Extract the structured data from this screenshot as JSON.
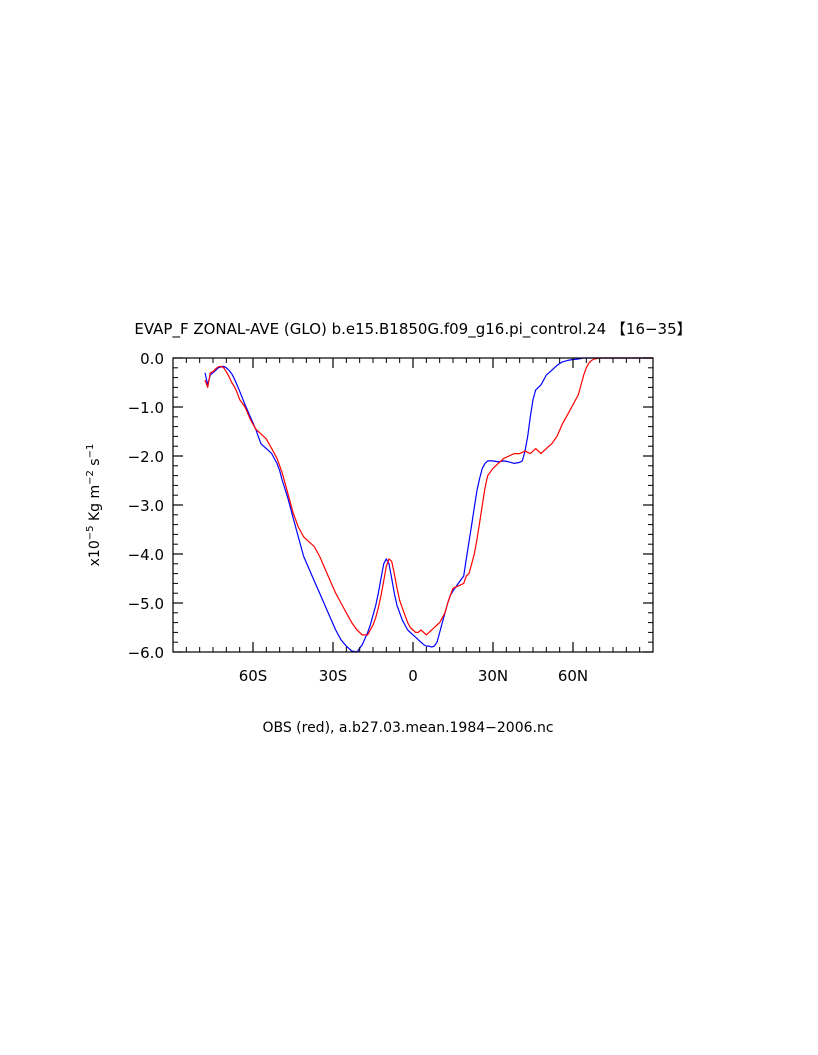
{
  "chart_data": {
    "type": "line",
    "title": "EVAP_F ZONAL-AVE (GLO) b.e15.B1850G.f09_g16.pi_control.24 【16−35】",
    "xlabel": "OBS (red), a.b27.03.mean.1984−2006.nc",
    "ylabel": {
      "prefix": "x10",
      "exp1": "−5",
      "mid1": " Kg m",
      "exp2": "−2",
      "mid2": " s",
      "exp3": "−1"
    },
    "xlim": [
      -90,
      90
    ],
    "ylim": [
      -6.0,
      0.0
    ],
    "x_ticks": [
      {
        "value": -60,
        "label": "60S"
      },
      {
        "value": -30,
        "label": "30S"
      },
      {
        "value": 0,
        "label": "0"
      },
      {
        "value": 30,
        "label": "30N"
      },
      {
        "value": 60,
        "label": "60N"
      }
    ],
    "y_ticks": [
      {
        "value": 0.0,
        "label": "0.0"
      },
      {
        "value": -1.0,
        "label": "−1.0"
      },
      {
        "value": -2.0,
        "label": "−2.0"
      },
      {
        "value": -3.0,
        "label": "−3.0"
      },
      {
        "value": -4.0,
        "label": "−4.0"
      },
      {
        "value": -5.0,
        "label": "−5.0"
      },
      {
        "value": -6.0,
        "label": "−6.0"
      }
    ],
    "series": [
      {
        "color": "#0000ff",
        "x": [
          -78,
          -77,
          -76,
          -75,
          -74,
          -73,
          -72,
          -71,
          -70,
          -69,
          -68,
          -67,
          -66,
          -65,
          -63,
          -61,
          -59,
          -58,
          -57,
          -55,
          -53,
          -51,
          -50,
          -49,
          -47,
          -45,
          -43,
          -41,
          -39,
          -37,
          -35,
          -33,
          -31,
          -29,
          -27,
          -25,
          -23,
          -21,
          -19,
          -17,
          -16,
          -15,
          -14,
          -13,
          -12,
          -11,
          -10,
          -9,
          -8,
          -7,
          -6,
          -5,
          -4,
          -3,
          -2,
          -1,
          0,
          1,
          2,
          3,
          4,
          5,
          6,
          7,
          8,
          9,
          10,
          11,
          12,
          13,
          14,
          15,
          17,
          19,
          20,
          21,
          22,
          23,
          24,
          25,
          26,
          27,
          28,
          30,
          32,
          34,
          36,
          38,
          40,
          41,
          42,
          43,
          44,
          45,
          46,
          48,
          50,
          52,
          54,
          56,
          58,
          60,
          62,
          64,
          65,
          66,
          67,
          68,
          69,
          70,
          71,
          72,
          73,
          74,
          75,
          76,
          78,
          80,
          82,
          84,
          86,
          88,
          90
        ],
        "y": [
          -0.3,
          -0.55,
          -0.35,
          -0.3,
          -0.25,
          -0.2,
          -0.18,
          -0.17,
          -0.2,
          -0.25,
          -0.32,
          -0.42,
          -0.55,
          -0.68,
          -0.95,
          -1.2,
          -1.45,
          -1.6,
          -1.75,
          -1.85,
          -1.95,
          -2.15,
          -2.3,
          -2.5,
          -2.85,
          -3.25,
          -3.65,
          -4.05,
          -4.3,
          -4.55,
          -4.8,
          -5.05,
          -5.3,
          -5.55,
          -5.75,
          -5.88,
          -5.98,
          -6.0,
          -5.85,
          -5.6,
          -5.45,
          -5.25,
          -5.05,
          -4.8,
          -4.5,
          -4.2,
          -4.1,
          -4.2,
          -4.5,
          -4.8,
          -5.05,
          -5.2,
          -5.35,
          -5.45,
          -5.55,
          -5.6,
          -5.65,
          -5.7,
          -5.75,
          -5.8,
          -5.85,
          -5.88,
          -5.88,
          -5.9,
          -5.88,
          -5.8,
          -5.6,
          -5.4,
          -5.2,
          -5.0,
          -4.85,
          -4.75,
          -4.6,
          -4.45,
          -4.1,
          -3.75,
          -3.4,
          -3.05,
          -2.7,
          -2.45,
          -2.25,
          -2.15,
          -2.1,
          -2.1,
          -2.12,
          -2.1,
          -2.12,
          -2.15,
          -2.13,
          -2.1,
          -1.9,
          -1.6,
          -1.2,
          -0.85,
          -0.65,
          -0.55,
          -0.35,
          -0.25,
          -0.15,
          -0.08,
          -0.05,
          -0.03,
          -0.02,
          -0.0,
          0.0,
          0.0,
          0.0,
          0.0,
          0.0,
          0.0,
          0.0,
          0.0,
          0.0,
          0.0,
          0.0,
          0.0,
          0.0,
          0.0,
          0.0,
          0.0,
          0.0,
          0.0,
          0.0
        ]
      },
      {
        "color": "#ff0000",
        "x": [
          -78,
          -77,
          -76,
          -75,
          -74,
          -73,
          -72,
          -71,
          -70,
          -69,
          -68,
          -67,
          -66,
          -65,
          -63,
          -61,
          -59,
          -57,
          -55,
          -53,
          -51,
          -49,
          -47,
          -45,
          -43,
          -41,
          -39,
          -37,
          -35,
          -33,
          -31,
          -29,
          -27,
          -25,
          -23,
          -21,
          -19,
          -17,
          -16,
          -15,
          -14,
          -13,
          -12,
          -11,
          -10,
          -9,
          -8,
          -7,
          -6,
          -5,
          -4,
          -3,
          -2,
          -1,
          0,
          1,
          2,
          3,
          4,
          5,
          6,
          7,
          8,
          9,
          10,
          11,
          12,
          13,
          14,
          15,
          17,
          19,
          20,
          21,
          22,
          23,
          24,
          25,
          26,
          27,
          28,
          30,
          32,
          34,
          36,
          38,
          40,
          42,
          44,
          46,
          48,
          50,
          52,
          54,
          56,
          58,
          60,
          62,
          63,
          64,
          65,
          66,
          67,
          68,
          70,
          72,
          74,
          76,
          78,
          80,
          82,
          84,
          86,
          88,
          90
        ],
        "y": [
          -0.45,
          -0.6,
          -0.3,
          -0.28,
          -0.22,
          -0.18,
          -0.17,
          -0.2,
          -0.28,
          -0.38,
          -0.5,
          -0.58,
          -0.7,
          -0.85,
          -1.0,
          -1.25,
          -1.45,
          -1.55,
          -1.65,
          -1.85,
          -2.05,
          -2.35,
          -2.75,
          -3.15,
          -3.45,
          -3.65,
          -3.75,
          -3.85,
          -4.05,
          -4.3,
          -4.55,
          -4.8,
          -5.0,
          -5.2,
          -5.4,
          -5.55,
          -5.65,
          -5.65,
          -5.55,
          -5.45,
          -5.3,
          -5.1,
          -4.85,
          -4.55,
          -4.25,
          -4.1,
          -4.15,
          -4.4,
          -4.7,
          -4.95,
          -5.1,
          -5.25,
          -5.4,
          -5.5,
          -5.55,
          -5.6,
          -5.6,
          -5.55,
          -5.6,
          -5.65,
          -5.6,
          -5.55,
          -5.5,
          -5.45,
          -5.4,
          -5.3,
          -5.2,
          -5.0,
          -4.85,
          -4.7,
          -4.65,
          -4.6,
          -4.45,
          -4.4,
          -4.2,
          -4.0,
          -3.7,
          -3.35,
          -3.0,
          -2.65,
          -2.4,
          -2.25,
          -2.15,
          -2.05,
          -2.0,
          -1.95,
          -1.95,
          -1.9,
          -1.95,
          -1.85,
          -1.95,
          -1.85,
          -1.75,
          -1.6,
          -1.35,
          -1.15,
          -0.95,
          -0.75,
          -0.55,
          -0.35,
          -0.2,
          -0.1,
          -0.05,
          -0.02,
          0.0,
          0.0,
          0.0,
          0.0,
          0.0,
          0.0,
          0.0,
          0.0,
          0.0,
          0.0,
          0.0
        ]
      }
    ]
  }
}
